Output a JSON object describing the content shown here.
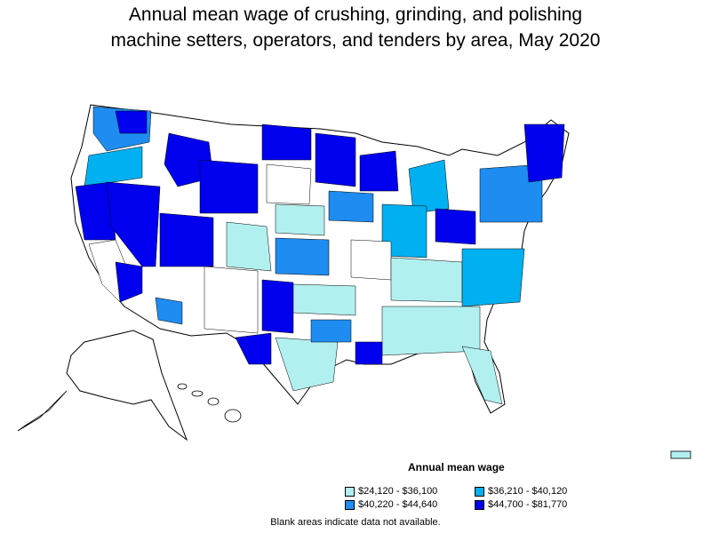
{
  "title_line1": "Annual mean wage of crushing, grinding, and polishing",
  "title_line2": "machine setters, operators, and tenders by area, May 2020",
  "legend": {
    "title": "Annual mean wage",
    "items": [
      {
        "label": "$24,120 - $36,100",
        "color": "#b2f0f0"
      },
      {
        "label": "$36,210 - $40,120",
        "color": "#00b0f0"
      },
      {
        "label": "$40,220 - $44,640",
        "color": "#1e8cf0"
      },
      {
        "label": "$44,700 - $81,770",
        "color": "#0000ee"
      }
    ]
  },
  "note": "Blank areas indicate data not available."
}
